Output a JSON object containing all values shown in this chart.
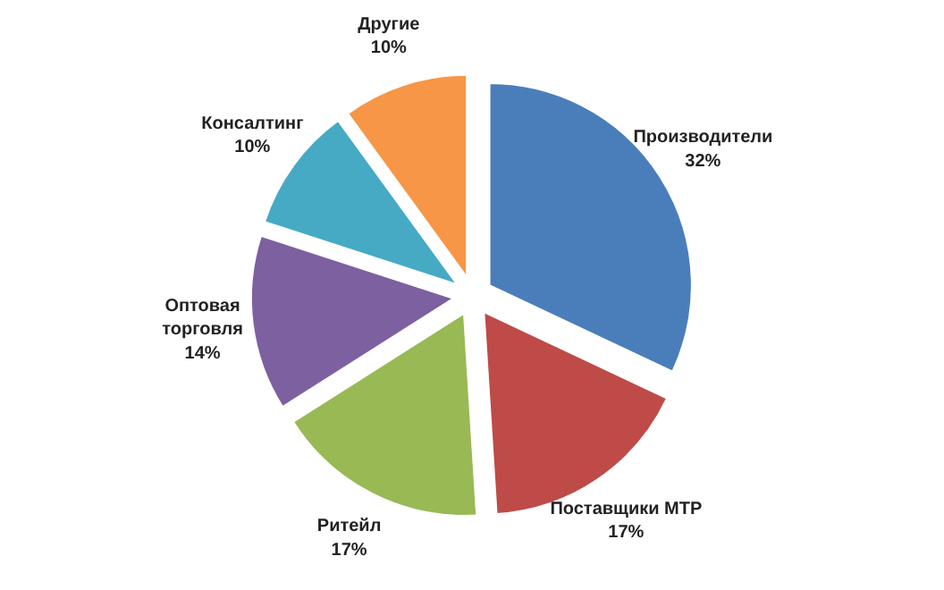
{
  "chart_data": {
    "type": "pie",
    "categories": [
      "Производители",
      "Поставщики МТР",
      "Ритейл",
      "Оптовая торговля",
      "Консалтинг",
      "Другие"
    ],
    "values": [
      32,
      17,
      17,
      14,
      10,
      10
    ],
    "value_labels": [
      "32%",
      "17%",
      "17%",
      "14%",
      "10%",
      "10%"
    ],
    "colors": [
      "#4a7ebb",
      "#be4b48",
      "#98b954",
      "#7d60a0",
      "#46aac5",
      "#f79646"
    ]
  }
}
